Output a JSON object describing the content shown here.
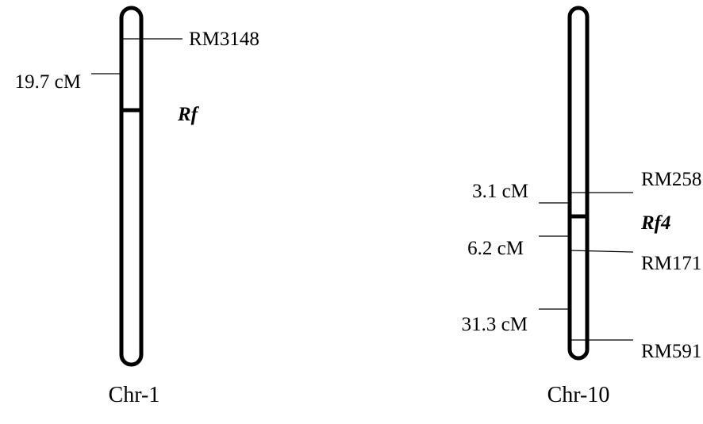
{
  "chromosomes": [
    {
      "name": "Chr-1",
      "markers": [
        "RM3148"
      ],
      "gene": "Rf",
      "distances": [
        "19.7 cM"
      ]
    },
    {
      "name": "Chr-10",
      "markers": [
        "RM258",
        "RM171",
        "RM591"
      ],
      "gene": "Rf4",
      "distances": [
        "3.1 cM",
        "6.2 cM",
        "31.3 cM"
      ]
    }
  ]
}
